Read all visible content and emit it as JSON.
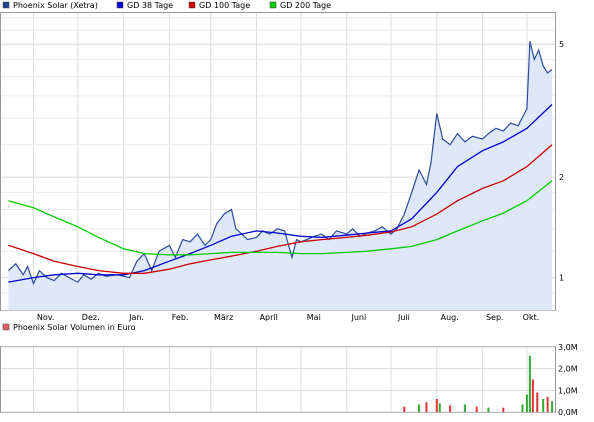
{
  "chart_data": [
    {
      "type": "line",
      "legend": [
        {
          "name": "Phoenix Solar (Xetra)",
          "color": "#1f3f8f"
        },
        {
          "name": "GD 38 Tage",
          "color": "#0000cc"
        },
        {
          "name": "GD 100 Tage",
          "color": "#cc0000"
        },
        {
          "name": "GD 200 Tage",
          "color": "#00cc00"
        }
      ],
      "legend_placement": "top-left",
      "x_tick_labels": [
        "Nov.",
        "Dez.",
        "Jan.",
        "Feb.",
        "März",
        "April",
        "Mai",
        "Juni",
        "Juli",
        "Aug.",
        "Sep.",
        "Okt."
      ],
      "y_tick_labels": [
        "1",
        "2",
        "5"
      ],
      "y_scale": "log",
      "ylim": [
        0.8,
        6.2
      ],
      "grid": true,
      "colors": {
        "price_fill": "#dfe8f8",
        "price_line": "#2a4a9a",
        "grid": "#dcdcdc"
      },
      "x_months": [
        "2008-10",
        "2008-11",
        "2008-12",
        "2009-01",
        "2009-02",
        "2009-03",
        "2009-04",
        "2009-05",
        "2009-06",
        "2009-07",
        "2009-08",
        "2009-09",
        "2009-10"
      ],
      "series": [
        {
          "name": "Phoenix Solar (Xetra)",
          "x": [
            "2008-10-15",
            "2008-10-20",
            "2008-10-25",
            "2008-10-28",
            "2008-11-01",
            "2008-11-05",
            "2008-11-10",
            "2008-11-15",
            "2008-11-20",
            "2008-11-25",
            "2008-12-01",
            "2008-12-05",
            "2008-12-10",
            "2008-12-15",
            "2008-12-20",
            "2008-12-28",
            "2009-01-05",
            "2009-01-10",
            "2009-01-15",
            "2009-01-20",
            "2009-01-25",
            "2009-02-01",
            "2009-02-05",
            "2009-02-10",
            "2009-02-15",
            "2009-02-20",
            "2009-02-25",
            "2009-03-01",
            "2009-03-05",
            "2009-03-10",
            "2009-03-15",
            "2009-03-18",
            "2009-03-22",
            "2009-03-26",
            "2009-04-01",
            "2009-04-05",
            "2009-04-10",
            "2009-04-15",
            "2009-04-20",
            "2009-04-25",
            "2009-04-28",
            "2009-05-01",
            "2009-05-05",
            "2009-05-10",
            "2009-05-15",
            "2009-05-20",
            "2009-05-25",
            "2009-06-01",
            "2009-06-05",
            "2009-06-10",
            "2009-06-15",
            "2009-06-20",
            "2009-06-25",
            "2009-07-01",
            "2009-07-05",
            "2009-07-10",
            "2009-07-15",
            "2009-07-20",
            "2009-07-25",
            "2009-07-28",
            "2009-08-01",
            "2009-08-05",
            "2009-08-10",
            "2009-08-15",
            "2009-08-20",
            "2009-08-25",
            "2009-09-01",
            "2009-09-05",
            "2009-09-10",
            "2009-09-15",
            "2009-09-20",
            "2009-09-25",
            "2009-10-01",
            "2009-10-03",
            "2009-10-06",
            "2009-10-09",
            "2009-10-12",
            "2009-10-15",
            "2009-10-18"
          ],
          "values": [
            1.05,
            1.1,
            1.02,
            1.08,
            0.96,
            1.05,
            1.0,
            0.98,
            1.03,
            1.0,
            0.97,
            1.02,
            0.99,
            1.03,
            1.01,
            1.02,
            1.0,
            1.12,
            1.18,
            1.05,
            1.2,
            1.25,
            1.15,
            1.3,
            1.28,
            1.35,
            1.25,
            1.3,
            1.45,
            1.55,
            1.6,
            1.4,
            1.35,
            1.3,
            1.32,
            1.38,
            1.35,
            1.4,
            1.38,
            1.15,
            1.3,
            1.28,
            1.3,
            1.33,
            1.35,
            1.3,
            1.38,
            1.35,
            1.4,
            1.33,
            1.36,
            1.38,
            1.42,
            1.35,
            1.4,
            1.55,
            1.8,
            2.1,
            1.9,
            2.2,
            3.1,
            2.6,
            2.5,
            2.7,
            2.55,
            2.65,
            2.6,
            2.7,
            2.8,
            2.75,
            2.9,
            2.85,
            3.2,
            5.1,
            4.5,
            4.8,
            4.3,
            4.1,
            4.2
          ],
          "area_fill": true
        },
        {
          "name": "GD 38 Tage",
          "x": [
            "2008-10-15",
            "2008-11-01",
            "2008-11-15",
            "2008-12-01",
            "2008-12-15",
            "2009-01-01",
            "2009-01-15",
            "2009-02-01",
            "2009-02-15",
            "2009-03-01",
            "2009-03-15",
            "2009-04-01",
            "2009-04-15",
            "2009-05-01",
            "2009-05-15",
            "2009-06-01",
            "2009-06-15",
            "2009-07-01",
            "2009-07-15",
            "2009-08-01",
            "2009-08-15",
            "2009-09-01",
            "2009-09-15",
            "2009-10-01",
            "2009-10-18"
          ],
          "values": [
            0.97,
            1.0,
            1.02,
            1.03,
            1.02,
            1.02,
            1.05,
            1.12,
            1.18,
            1.25,
            1.33,
            1.38,
            1.36,
            1.33,
            1.32,
            1.34,
            1.36,
            1.38,
            1.5,
            1.8,
            2.15,
            2.4,
            2.55,
            2.8,
            3.3
          ]
        },
        {
          "name": "GD 100 Tage",
          "x": [
            "2008-10-15",
            "2008-11-01",
            "2008-11-15",
            "2008-12-01",
            "2008-12-15",
            "2009-01-01",
            "2009-01-15",
            "2009-02-01",
            "2009-02-15",
            "2009-03-01",
            "2009-03-15",
            "2009-04-01",
            "2009-04-15",
            "2009-05-01",
            "2009-05-15",
            "2009-06-01",
            "2009-06-15",
            "2009-07-01",
            "2009-07-15",
            "2009-08-01",
            "2009-08-15",
            "2009-09-01",
            "2009-09-15",
            "2009-10-01",
            "2009-10-18"
          ],
          "values": [
            1.25,
            1.18,
            1.12,
            1.08,
            1.05,
            1.03,
            1.03,
            1.06,
            1.1,
            1.13,
            1.16,
            1.2,
            1.24,
            1.28,
            1.3,
            1.32,
            1.34,
            1.37,
            1.42,
            1.55,
            1.7,
            1.85,
            1.95,
            2.15,
            2.5
          ]
        },
        {
          "name": "GD 200 Tage",
          "x": [
            "2008-10-15",
            "2008-11-01",
            "2008-11-15",
            "2008-12-01",
            "2008-12-15",
            "2009-01-01",
            "2009-01-15",
            "2009-02-01",
            "2009-02-15",
            "2009-03-01",
            "2009-03-15",
            "2009-04-01",
            "2009-04-15",
            "2009-05-01",
            "2009-05-15",
            "2009-06-01",
            "2009-06-15",
            "2009-07-01",
            "2009-07-15",
            "2009-08-01",
            "2009-08-15",
            "2009-09-01",
            "2009-09-15",
            "2009-10-01",
            "2009-10-18"
          ],
          "values": [
            1.7,
            1.62,
            1.52,
            1.42,
            1.32,
            1.22,
            1.18,
            1.17,
            1.17,
            1.18,
            1.19,
            1.19,
            1.19,
            1.18,
            1.18,
            1.19,
            1.2,
            1.22,
            1.24,
            1.3,
            1.38,
            1.48,
            1.56,
            1.7,
            1.95
          ]
        }
      ]
    },
    {
      "type": "bar",
      "legend": [
        {
          "name": "Phoenix Solar Volumen in Euro",
          "color": "#e06060"
        }
      ],
      "y_tick_labels": [
        "0,0M",
        "1,0M",
        "2,0M",
        "3,0M"
      ],
      "ylim": [
        0,
        3.0
      ],
      "unit": "M",
      "grid": true,
      "colors": {
        "up": "#33aa33",
        "down": "#dd3333"
      },
      "bars": [
        {
          "x": "2009-07-10",
          "value": 0.25,
          "dir": "down"
        },
        {
          "x": "2009-07-20",
          "value": 0.35,
          "dir": "up"
        },
        {
          "x": "2009-07-25",
          "value": 0.45,
          "dir": "down"
        },
        {
          "x": "2009-08-01",
          "value": 0.6,
          "dir": "down"
        },
        {
          "x": "2009-08-03",
          "value": 0.4,
          "dir": "up"
        },
        {
          "x": "2009-08-10",
          "value": 0.3,
          "dir": "down"
        },
        {
          "x": "2009-08-20",
          "value": 0.35,
          "dir": "up"
        },
        {
          "x": "2009-08-28",
          "value": 0.25,
          "dir": "down"
        },
        {
          "x": "2009-09-05",
          "value": 0.2,
          "dir": "up"
        },
        {
          "x": "2009-09-15",
          "value": 0.2,
          "dir": "down"
        },
        {
          "x": "2009-09-28",
          "value": 0.35,
          "dir": "up"
        },
        {
          "x": "2009-10-01",
          "value": 0.8,
          "dir": "up"
        },
        {
          "x": "2009-10-03",
          "value": 2.6,
          "dir": "up"
        },
        {
          "x": "2009-10-05",
          "value": 1.5,
          "dir": "down"
        },
        {
          "x": "2009-10-08",
          "value": 0.9,
          "dir": "down"
        },
        {
          "x": "2009-10-12",
          "value": 0.6,
          "dir": "up"
        },
        {
          "x": "2009-10-15",
          "value": 0.7,
          "dir": "down"
        },
        {
          "x": "2009-10-18",
          "value": 0.5,
          "dir": "up"
        }
      ]
    }
  ]
}
